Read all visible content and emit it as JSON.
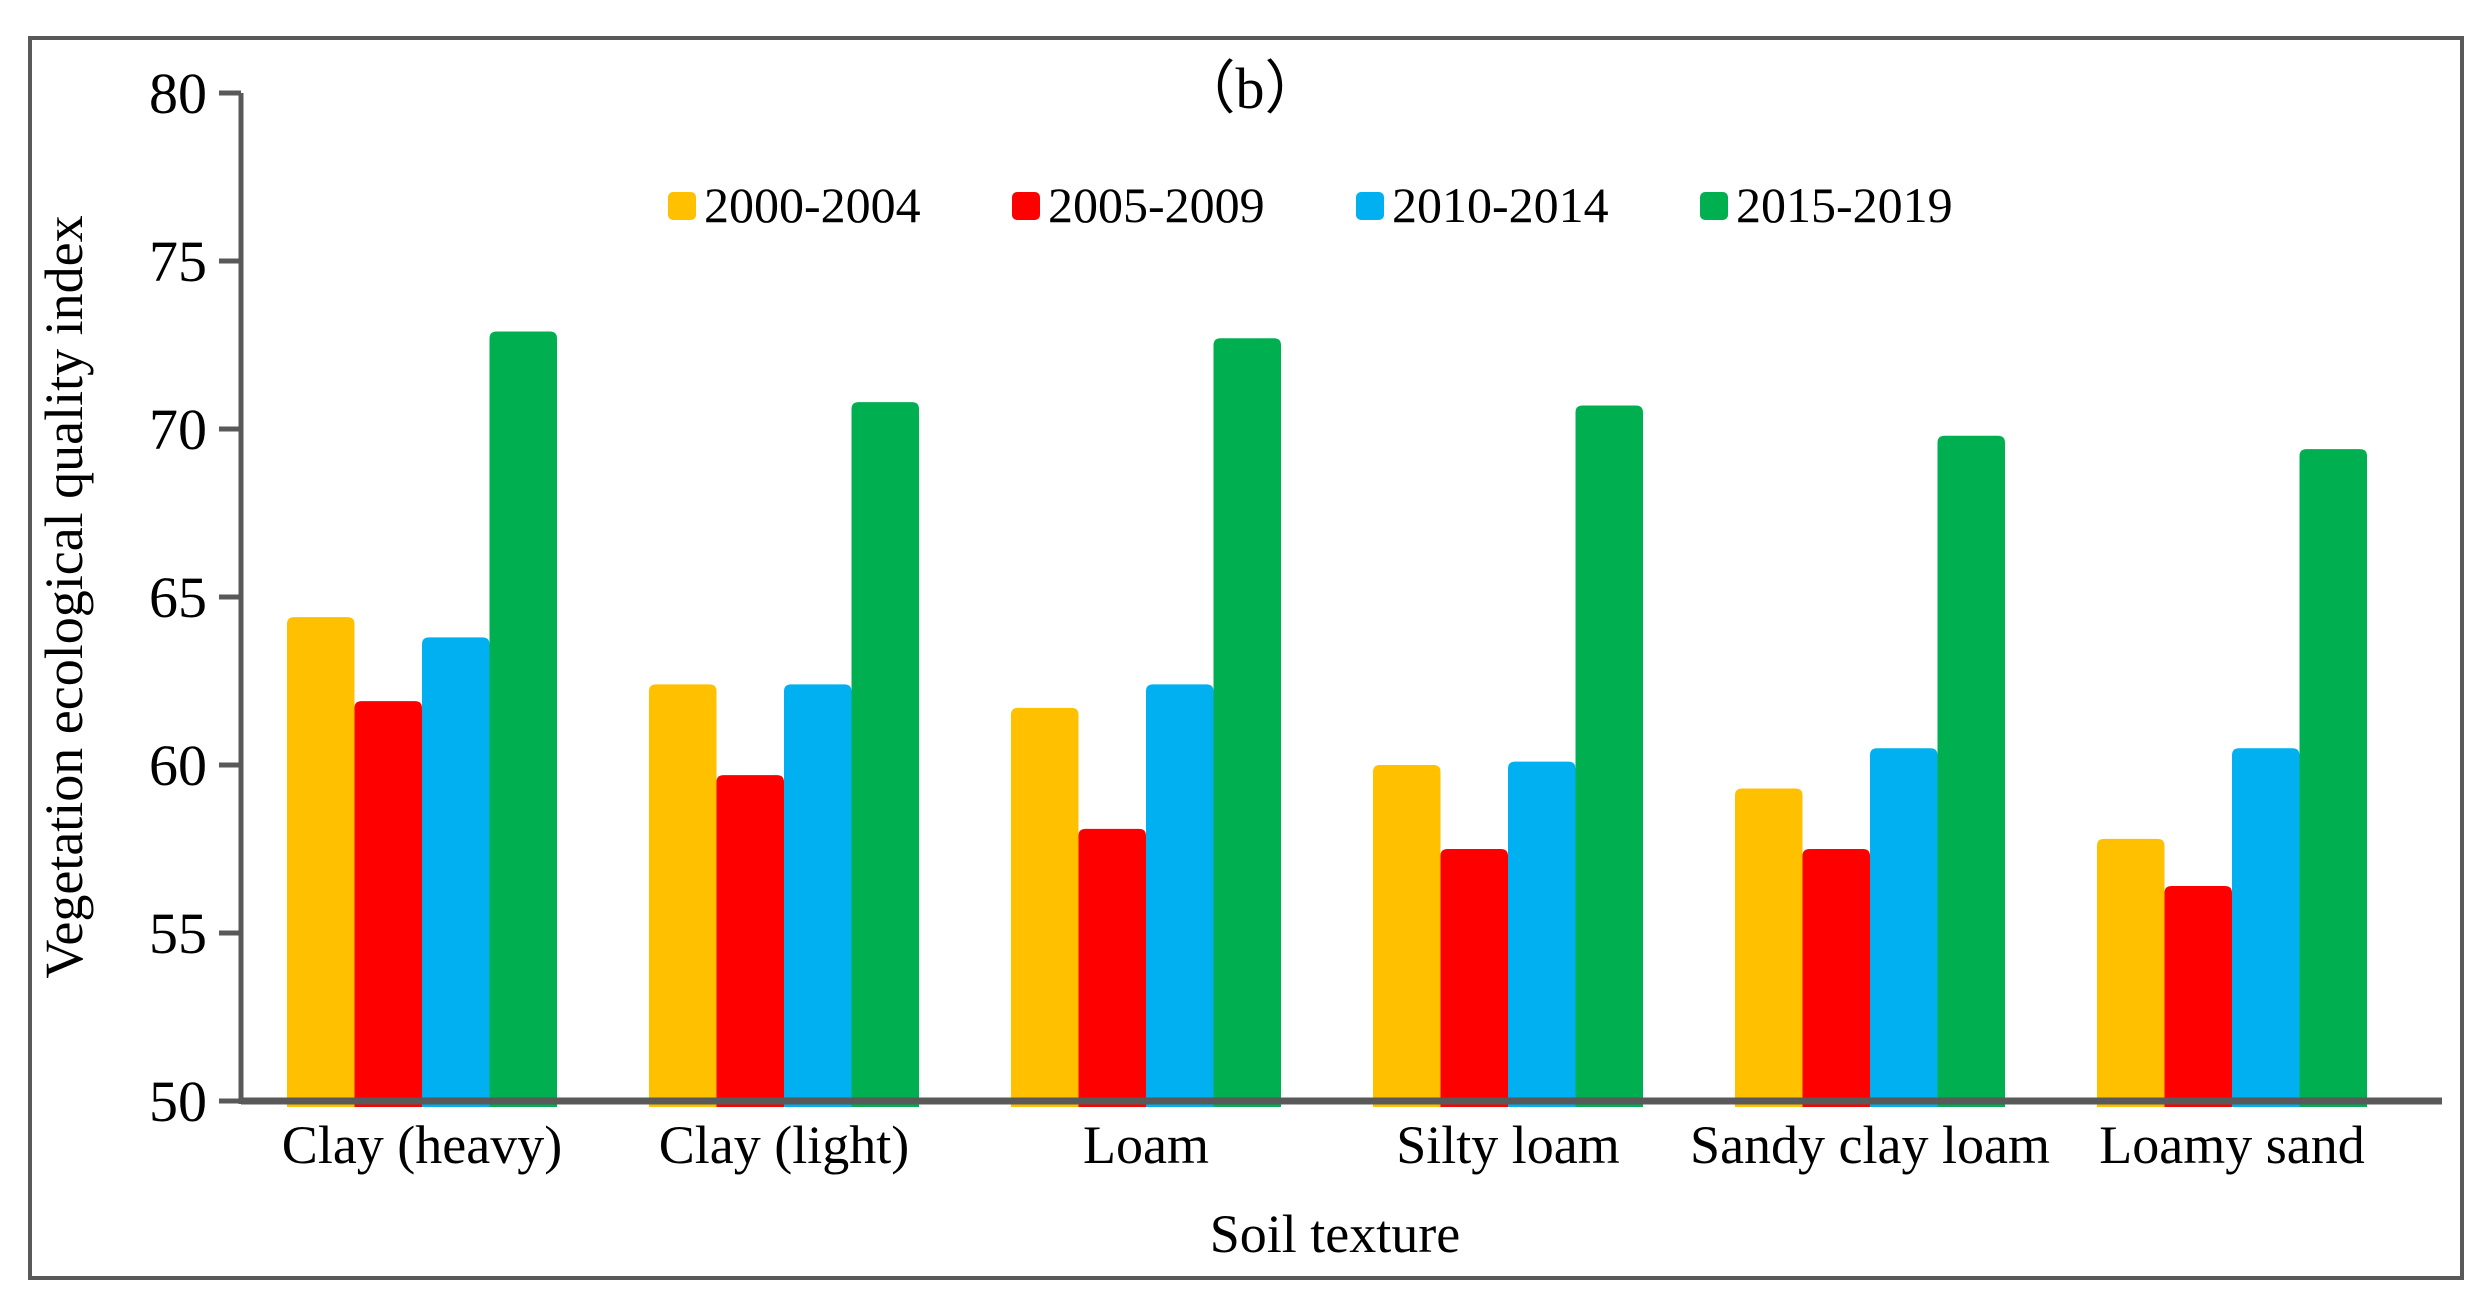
{
  "chart_data": {
    "type": "bar",
    "title": "（b）",
    "xlabel": "Soil texture",
    "ylabel": "Vegetation ecological quality index",
    "categories": [
      "Clay (heavy)",
      "Clay (light)",
      "Loam",
      "Silty loam",
      "Sandy clay loam",
      "Loamy sand"
    ],
    "series": [
      {
        "name": "2000-2004",
        "color": "#FFC000",
        "values": [
          64.4,
          62.4,
          61.7,
          60.0,
          59.3,
          57.8
        ]
      },
      {
        "name": "2005-2009",
        "color": "#FF0000",
        "values": [
          61.9,
          59.7,
          58.1,
          57.5,
          57.5,
          56.4
        ]
      },
      {
        "name": "2010-2014",
        "color": "#00B0F0",
        "values": [
          63.8,
          62.4,
          62.4,
          60.1,
          60.5,
          60.5
        ]
      },
      {
        "name": "2015-2019",
        "color": "#00B050",
        "values": [
          72.9,
          70.8,
          72.7,
          70.7,
          69.8,
          69.4
        ]
      }
    ],
    "ylim": [
      50,
      80
    ],
    "ytick_step": 5,
    "ytick_labels": [
      "50",
      "55",
      "60",
      "65",
      "70",
      "75",
      "80"
    ],
    "grid": false,
    "legend_position": "top-center",
    "axis_color": "#595959",
    "text_color": "#000000",
    "background_color": "#FFFFFF"
  }
}
